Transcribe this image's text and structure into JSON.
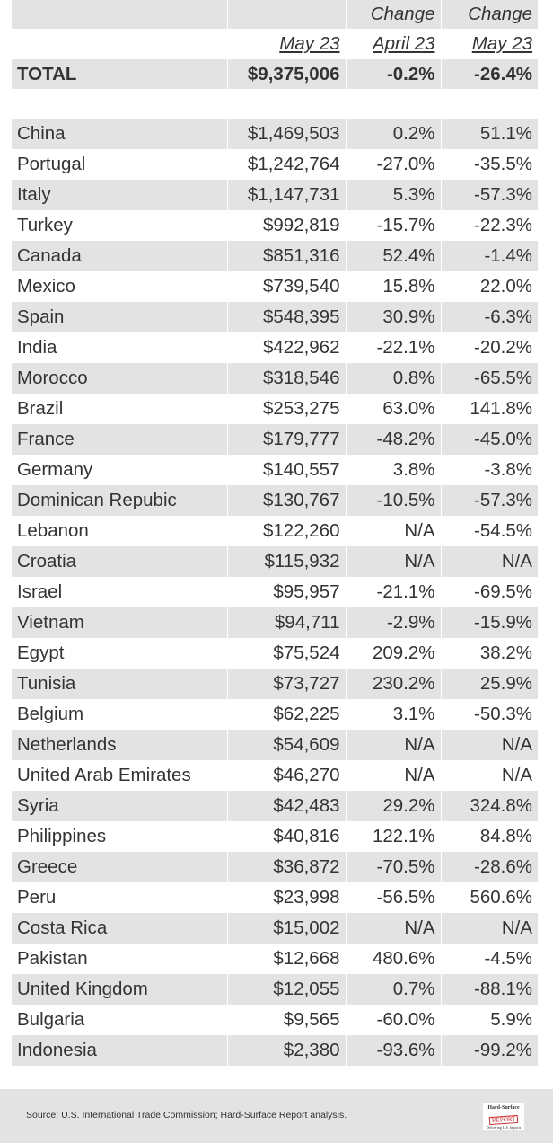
{
  "header": {
    "row1": [
      "",
      "",
      "Change",
      "Change"
    ],
    "row2": [
      "",
      "May 23",
      "April 23",
      "May 23"
    ]
  },
  "total": {
    "label": "TOTAL",
    "value": "$9,375,006",
    "change_april": "-0.2%",
    "change_may": "-26.4%"
  },
  "rows": [
    [
      "China",
      "$1,469,503",
      "0.2%",
      "51.1%"
    ],
    [
      "Portugal",
      "$1,242,764",
      "-27.0%",
      "-35.5%"
    ],
    [
      "Italy",
      "$1,147,731",
      "5.3%",
      "-57.3%"
    ],
    [
      "Turkey",
      "$992,819",
      "-15.7%",
      "-22.3%"
    ],
    [
      "Canada",
      "$851,316",
      "52.4%",
      "-1.4%"
    ],
    [
      "Mexico",
      "$739,540",
      "15.8%",
      "22.0%"
    ],
    [
      "Spain",
      "$548,395",
      "30.9%",
      "-6.3%"
    ],
    [
      "India",
      "$422,962",
      "-22.1%",
      "-20.2%"
    ],
    [
      "Morocco",
      "$318,546",
      "0.8%",
      "-65.5%"
    ],
    [
      "Brazil",
      "$253,275",
      "63.0%",
      "141.8%"
    ],
    [
      "France",
      "$179,777",
      "-48.2%",
      "-45.0%"
    ],
    [
      "Germany",
      "$140,557",
      "3.8%",
      "-3.8%"
    ],
    [
      "Dominican Repubic",
      "$130,767",
      "-10.5%",
      "-57.3%"
    ],
    [
      "Lebanon",
      "$122,260",
      "N/A",
      "-54.5%"
    ],
    [
      "Croatia",
      "$115,932",
      "N/A",
      "N/A"
    ],
    [
      "Israel",
      "$95,957",
      "-21.1%",
      "-69.5%"
    ],
    [
      "Vietnam",
      "$94,711",
      "-2.9%",
      "-15.9%"
    ],
    [
      "Egypt",
      "$75,524",
      "209.2%",
      "38.2%"
    ],
    [
      "Tunisia",
      "$73,727",
      "230.2%",
      "25.9%"
    ],
    [
      "Belgium",
      "$62,225",
      "3.1%",
      "-50.3%"
    ],
    [
      "Netherlands",
      "$54,609",
      "N/A",
      "N/A"
    ],
    [
      "United Arab Emirates",
      "$46,270",
      "N/A",
      "N/A"
    ],
    [
      "Syria",
      "$42,483",
      "29.2%",
      "324.8%"
    ],
    [
      "Philippines",
      "$40,816",
      "122.1%",
      "84.8%"
    ],
    [
      "Greece",
      "$36,872",
      "-70.5%",
      "-28.6%"
    ],
    [
      "Peru",
      "$23,998",
      "-56.5%",
      "560.6%"
    ],
    [
      "Costa Rica",
      "$15,002",
      "N/A",
      "N/A"
    ],
    [
      "Pakistan",
      "$12,668",
      "480.6%",
      "-4.5%"
    ],
    [
      "United Kingdom",
      "$12,055",
      "0.7%",
      "-88.1%"
    ],
    [
      "Bulgaria",
      "$9,565",
      "-60.0%",
      "5.9%"
    ],
    [
      "Indonesia",
      "$2,380",
      "-93.6%",
      "-99.2%"
    ]
  ],
  "footer": {
    "source": "Source: U.S. International Trade Commission; Hard-Surface Report analysis.",
    "logo_text": [
      "Hard-Surface",
      "REPORT",
      "Delivering U.S. Imports"
    ]
  },
  "colors": {
    "row_shade": "#e3e3e3",
    "text": "#333333"
  }
}
